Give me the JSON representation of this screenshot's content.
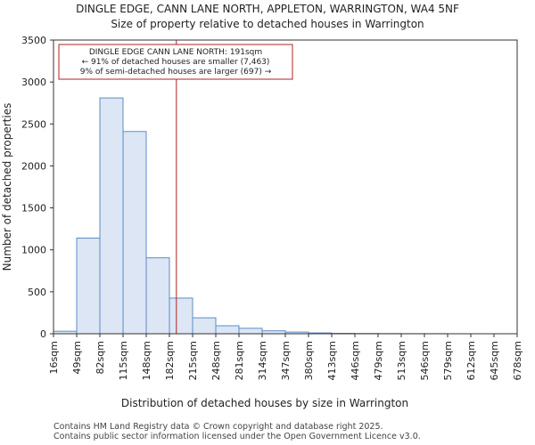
{
  "chart_data": {
    "type": "bar",
    "title": "DINGLE EDGE, CANN LANE NORTH, APPLETON, WARRINGTON, WA4 5NF",
    "subtitle": "Size of property relative to detached houses in Warrington",
    "xlabel": "Distribution of detached houses by size in Warrington",
    "ylabel": "Number of detached properties",
    "ylim": [
      0,
      3500
    ],
    "yticks": [
      0,
      500,
      1000,
      1500,
      2000,
      2500,
      3000,
      3500
    ],
    "bin_edges": [
      "16sqm",
      "49sqm",
      "82sqm",
      "115sqm",
      "148sqm",
      "182sqm",
      "215sqm",
      "248sqm",
      "281sqm",
      "314sqm",
      "347sqm",
      "380sqm",
      "413sqm",
      "446sqm",
      "479sqm",
      "513sqm",
      "546sqm",
      "579sqm",
      "612sqm",
      "645sqm",
      "678sqm"
    ],
    "values": [
      30,
      1140,
      2810,
      2410,
      905,
      425,
      190,
      95,
      65,
      35,
      20,
      10,
      5,
      3,
      2,
      1,
      1,
      0,
      0,
      0
    ],
    "bar_color": "#dce6f4",
    "bar_edge_color": "#5b8cc8",
    "marker": {
      "value": 191,
      "bin_index": 5,
      "bin_fraction": 0.3,
      "color": "#b22222",
      "annotation": [
        "DINGLE EDGE CANN LANE NORTH: 191sqm",
        "← 91% of detached houses are smaller (7,463)",
        "9% of semi-detached houses are larger (697) →"
      ]
    }
  },
  "footer": {
    "line1": "Contains HM Land Registry data © Crown copyright and database right 2025.",
    "line2": "Contains public sector information licensed under the Open Government Licence v3.0."
  }
}
